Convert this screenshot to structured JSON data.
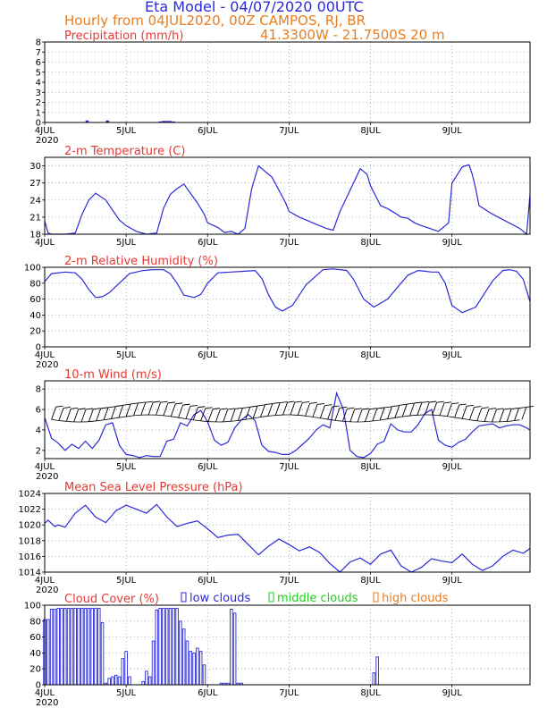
{
  "header": {
    "title": "Eta Model - 04/07/2020 00UTC",
    "subtitle": "Hourly from 04JUL2020, 00Z  CAMPOS, RJ, BR",
    "coords": "41.3300W - 21.7500S      20  m"
  },
  "colors": {
    "line": "#2a2ad8",
    "title": "#e53935",
    "orange": "#e67e22",
    "green": "#22cc22",
    "grid": "#9a9a9a"
  },
  "chart_data": [
    {
      "id": "precip",
      "type": "bar",
      "title": "Precipitation (mm/h)",
      "ylim": [
        0,
        8
      ],
      "yticks": [
        "0",
        "1",
        "2",
        "3",
        "4",
        "5",
        "6",
        "7",
        "8"
      ],
      "xlabels": [
        "4JUL",
        "5JUL",
        "6JUL",
        "7JUL",
        "8JUL",
        "9JUL"
      ],
      "xsub": "2020",
      "bars": [
        [
          12.5,
          0.2
        ],
        [
          18.5,
          0.2
        ],
        [
          34,
          0.1
        ],
        [
          35,
          0.15
        ],
        [
          36,
          0.15
        ],
        [
          37,
          0.15
        ],
        [
          38,
          0.1
        ],
        [
          96.5,
          0.05
        ]
      ]
    },
    {
      "id": "temp",
      "type": "line",
      "title": "2-m Temperature (C)",
      "ylim": [
        18,
        31.5
      ],
      "yticks": [
        "18",
        "21",
        "24",
        "27",
        "30"
      ],
      "xlabels": [
        "4JUL",
        "5JUL",
        "6JUL",
        "7JUL",
        "8JUL",
        "9JUL"
      ],
      "xsub": "",
      "x": [
        0,
        1,
        2,
        6,
        9,
        11,
        13,
        15,
        18,
        22,
        24,
        27,
        30,
        33,
        35,
        37,
        39,
        41,
        45,
        47,
        48,
        51,
        53,
        55,
        57,
        59,
        61,
        63,
        67,
        71,
        72,
        75,
        77,
        79,
        81,
        83,
        85,
        87,
        93,
        95,
        96,
        99,
        101,
        103,
        105,
        107,
        109,
        111,
        116,
        119,
        120,
        123,
        125,
        126,
        127,
        128,
        132,
        140,
        142,
        143
      ],
      "values": [
        20.3,
        18.2,
        18.0,
        18.0,
        18.2,
        21.5,
        24.0,
        25.2,
        24.0,
        20.5,
        19.5,
        18.5,
        18.0,
        18.2,
        22.5,
        25.0,
        26.0,
        26.8,
        23.5,
        21.5,
        20.0,
        19.2,
        18.3,
        18.5,
        18.0,
        19.0,
        26.0,
        30.0,
        28.0,
        23.5,
        22.0,
        21.0,
        20.5,
        20.0,
        19.5,
        19.0,
        18.7,
        22.0,
        29.5,
        28.5,
        26.5,
        23.0,
        22.5,
        21.8,
        21.0,
        20.8,
        20.0,
        19.5,
        18.5,
        20.0,
        27.0,
        29.8,
        30.2,
        28.5,
        26.0,
        23.0,
        21.5,
        19.0,
        18.0,
        25.0
      ]
    },
    {
      "id": "rh",
      "type": "line",
      "title": "2-m Relative Humidity (%)",
      "ylim": [
        0,
        100
      ],
      "yticks": [
        "0",
        "20",
        "40",
        "60",
        "80",
        "100"
      ],
      "xlabels": [
        "4JUL",
        "5JUL",
        "6JUL",
        "7JUL",
        "8JUL",
        "9JUL"
      ],
      "xsub": "2020",
      "x": [
        0,
        2,
        6,
        9,
        11,
        13,
        15,
        17,
        19,
        22,
        25,
        29,
        32,
        35,
        37,
        39,
        41,
        44,
        46,
        48,
        51,
        55,
        59,
        62,
        64,
        66,
        68,
        70,
        73,
        77,
        82,
        85,
        87,
        89,
        91,
        94,
        97,
        101,
        107,
        110,
        112,
        114,
        116,
        118,
        120,
        123,
        127,
        132,
        135,
        137,
        139,
        141,
        143
      ],
      "values": [
        82,
        92,
        94,
        93,
        85,
        72,
        62,
        63,
        68,
        80,
        92,
        96,
        97,
        97,
        92,
        80,
        65,
        62,
        66,
        80,
        93,
        94,
        95,
        96,
        86,
        65,
        50,
        45,
        52,
        78,
        97,
        98,
        97,
        96,
        85,
        60,
        50,
        60,
        90,
        96,
        95,
        94,
        94,
        80,
        52,
        43,
        50,
        83,
        96,
        97,
        95,
        85,
        57
      ]
    },
    {
      "id": "wind",
      "type": "line",
      "title": "10-m Wind (m/s)",
      "ylim": [
        1.2,
        8.8
      ],
      "yticks": [
        "2",
        "4",
        "6",
        "8"
      ],
      "xlabels": [
        "4JUL",
        "5JUL",
        "6JUL",
        "7JUL",
        "8JUL",
        "9JUL"
      ],
      "xsub": "2020",
      "x": [
        0,
        2,
        4,
        6,
        8,
        10,
        12,
        14,
        16,
        18,
        20,
        22,
        24,
        26,
        28,
        30,
        32,
        34,
        36,
        38,
        40,
        42,
        44,
        46,
        48,
        50,
        52,
        54,
        56,
        58,
        60,
        62,
        64,
        66,
        68,
        70,
        72,
        74,
        76,
        78,
        80,
        82,
        84,
        86,
        88,
        90,
        92,
        94,
        96,
        98,
        100,
        102,
        104,
        106,
        108,
        110,
        112,
        114,
        116,
        118,
        120,
        122,
        124,
        126,
        128,
        130,
        132,
        134,
        136,
        138,
        140,
        142,
        143
      ],
      "values": [
        5.2,
        3.2,
        2.7,
        2.0,
        2.6,
        2.2,
        2.9,
        2.2,
        3.0,
        4.5,
        4.7,
        2.5,
        1.6,
        1.5,
        1.3,
        1.5,
        1.4,
        1.4,
        2.9,
        3.1,
        4.7,
        4.4,
        5.5,
        5.9,
        4.8,
        3.0,
        2.5,
        2.8,
        4.2,
        5.0,
        5.5,
        4.9,
        2.5,
        1.9,
        1.8,
        1.6,
        1.6,
        2.0,
        2.6,
        3.2,
        4.0,
        4.5,
        4.2,
        7.6,
        6.0,
        2.0,
        1.4,
        1.3,
        1.7,
        2.6,
        2.9,
        4.6,
        4.0,
        3.8,
        3.8,
        4.5,
        5.6,
        6.0,
        3.0,
        2.5,
        2.3,
        2.8,
        3.1,
        3.8,
        4.4,
        4.5,
        4.6,
        4.2,
        4.4,
        4.5,
        4.5,
        4.2,
        4.0
      ]
    },
    {
      "id": "mslp",
      "type": "line",
      "title": "Mean Sea Level Pressure (hPa)",
      "ylim": [
        1014,
        1024
      ],
      "yticks": [
        "1014",
        "1016",
        "1018",
        "1020",
        "1022",
        "1024"
      ],
      "xlabels": [
        "4JUL",
        "5JUL",
        "6JUL",
        "7JUL",
        "8JUL",
        "9JUL"
      ],
      "xsub": "2020",
      "x": [
        0,
        1,
        3,
        4,
        6,
        9,
        12,
        15,
        18,
        21,
        24,
        27,
        30,
        33,
        36,
        39,
        42,
        45,
        48,
        51,
        54,
        57,
        60,
        63,
        66,
        69,
        72,
        75,
        78,
        81,
        84,
        87,
        90,
        93,
        96,
        99,
        102,
        105,
        108,
        111,
        114,
        117,
        120,
        123,
        126,
        129,
        132,
        135,
        138,
        141,
        143
      ],
      "values": [
        1020.2,
        1020.6,
        1019.8,
        1020.0,
        1019.7,
        1021.5,
        1022.5,
        1021.0,
        1020.3,
        1021.8,
        1022.5,
        1022.0,
        1021.5,
        1022.6,
        1021.0,
        1019.8,
        1020.2,
        1020.5,
        1019.5,
        1018.4,
        1018.7,
        1018.8,
        1017.5,
        1016.2,
        1017.3,
        1018.2,
        1017.5,
        1016.7,
        1017.2,
        1016.5,
        1015.1,
        1014.0,
        1015.3,
        1015.8,
        1015.0,
        1016.3,
        1016.8,
        1014.8,
        1014.0,
        1014.6,
        1015.7,
        1015.4,
        1015.2,
        1016.3,
        1015.0,
        1014.2,
        1014.8,
        1016.0,
        1016.8,
        1016.4,
        1017.0
      ]
    },
    {
      "id": "cloud",
      "type": "bar",
      "title": "Cloud Cover (%)",
      "legend": [
        "low clouds",
        "middle clouds",
        "high clouds"
      ],
      "ylim": [
        0,
        100
      ],
      "yticks": [
        "0",
        "20",
        "40",
        "60",
        "80",
        "100"
      ],
      "xlabels": [
        "4JUL",
        "5JUL",
        "6JUL",
        "7JUL",
        "8JUL",
        "9JUL"
      ],
      "xsub": "2020",
      "bars": [
        [
          0,
          82
        ],
        [
          1,
          82
        ],
        [
          2,
          95
        ],
        [
          3,
          95
        ],
        [
          4,
          96
        ],
        [
          5,
          96
        ],
        [
          6,
          96
        ],
        [
          7,
          96
        ],
        [
          8,
          96
        ],
        [
          9,
          96
        ],
        [
          10,
          96
        ],
        [
          11,
          96
        ],
        [
          12,
          96
        ],
        [
          13,
          96
        ],
        [
          14,
          96
        ],
        [
          15,
          96
        ],
        [
          16,
          96
        ],
        [
          17,
          78
        ],
        [
          18,
          2
        ],
        [
          19,
          8
        ],
        [
          20,
          10
        ],
        [
          21,
          12
        ],
        [
          22,
          10
        ],
        [
          23,
          33
        ],
        [
          24,
          42
        ],
        [
          25,
          10
        ],
        [
          26,
          0
        ],
        [
          29,
          4
        ],
        [
          30,
          17
        ],
        [
          31,
          10
        ],
        [
          32,
          55
        ],
        [
          33,
          94
        ],
        [
          34,
          96
        ],
        [
          35,
          96
        ],
        [
          36,
          96
        ],
        [
          37,
          96
        ],
        [
          38,
          96
        ],
        [
          39,
          96
        ],
        [
          40,
          80
        ],
        [
          41,
          70
        ],
        [
          42,
          55
        ],
        [
          43,
          42
        ],
        [
          44,
          40
        ],
        [
          45,
          46
        ],
        [
          46,
          42
        ],
        [
          47,
          25
        ],
        [
          52,
          2
        ],
        [
          53,
          2
        ],
        [
          54,
          2
        ],
        [
          55,
          95
        ],
        [
          56,
          90
        ],
        [
          57,
          2
        ],
        [
          58,
          2
        ],
        [
          97,
          15
        ],
        [
          98,
          35
        ]
      ]
    }
  ]
}
